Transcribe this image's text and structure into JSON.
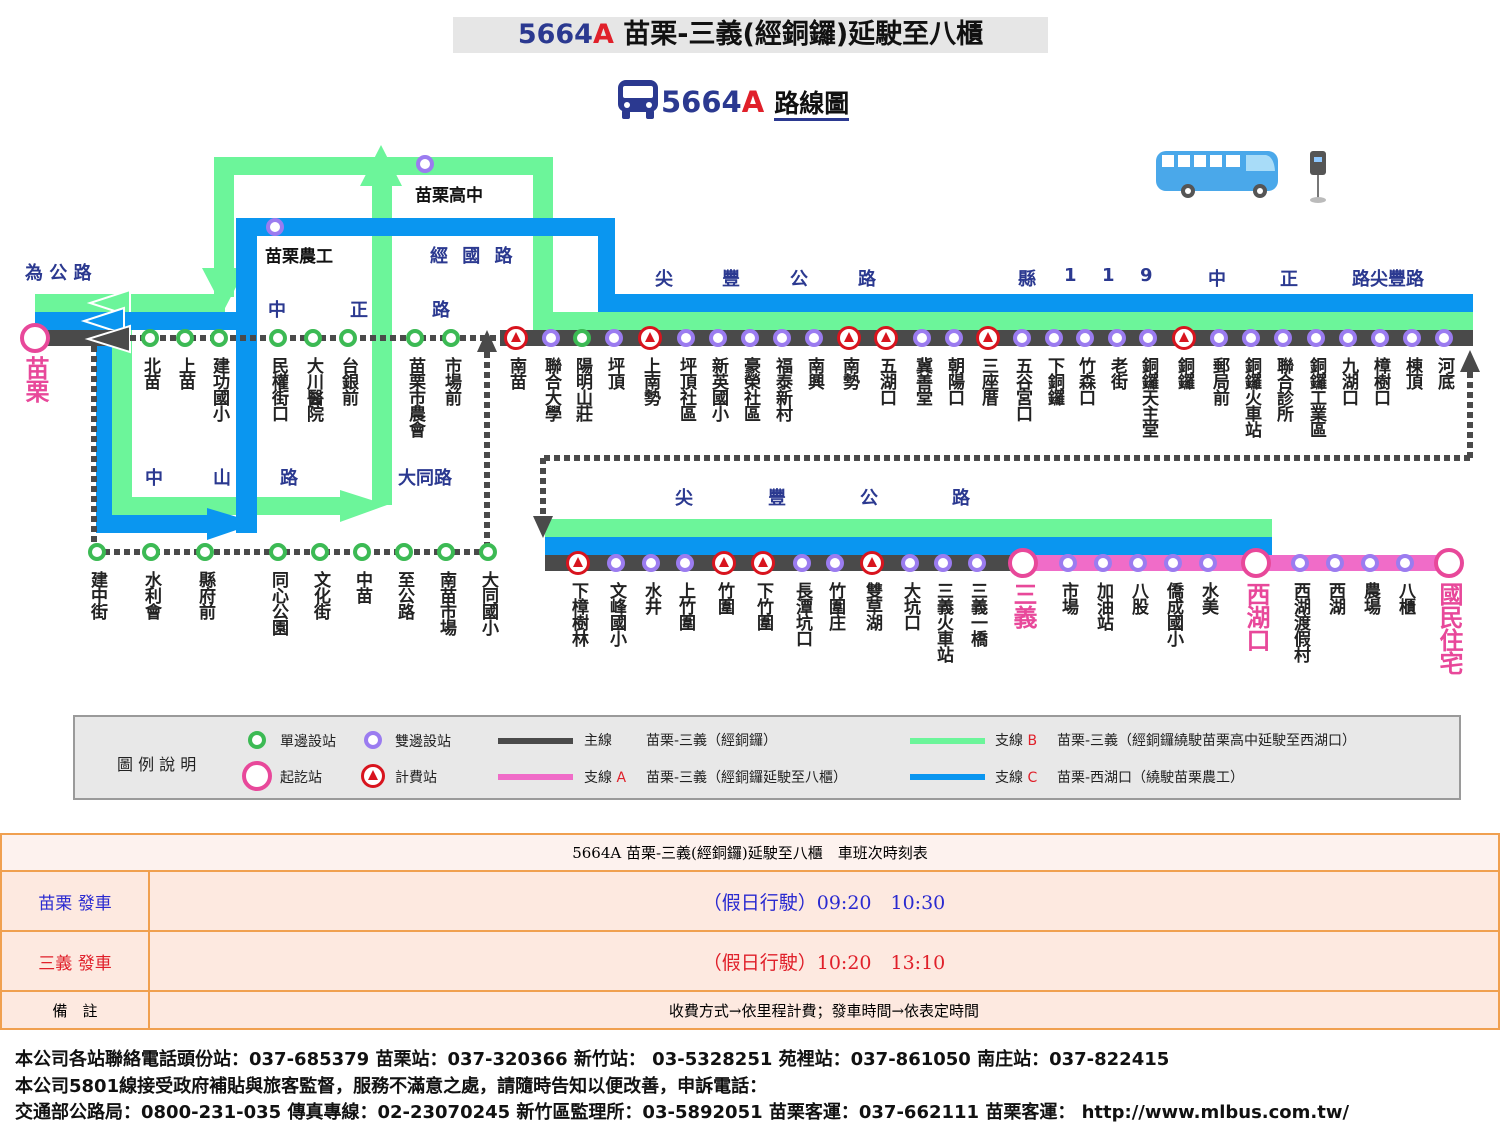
{
  "header": {
    "route_no": "5664",
    "route_suffix": "A",
    "title_rest": " 苗栗-三義(經銅鑼)延駛至八櫃"
  },
  "subtitle": {
    "route_no": "5664",
    "route_suffix": "A",
    "label": "路線圖"
  },
  "colors": {
    "main": "#4a4a4a",
    "branch_a": "#f06cc8",
    "branch_b": "#6cf59a",
    "branch_c": "#0a96f0",
    "navy": "#2b3990",
    "toll": "#d8141e"
  },
  "roads": {
    "weigong": "為 公 路",
    "jingguo": "經 國 路",
    "zhongzheng": [
      "中",
      "正",
      "路"
    ],
    "zhongshan": [
      "中",
      "山",
      "路"
    ],
    "datong": "大同路",
    "jianfeng_top": [
      "尖",
      "豐",
      "公",
      "路"
    ],
    "county119": [
      "縣",
      "1",
      "1",
      "9",
      "中",
      "正",
      "路尖豐路"
    ],
    "jianfeng_bottom": [
      "尖",
      "豐",
      "公",
      "路"
    ]
  },
  "off_stations": {
    "miaoli_high": "苗栗高中",
    "miaoli_agri": "苗栗農工"
  },
  "stations": {
    "origin": {
      "name": "苗栗",
      "type": "terminal"
    },
    "row1": [
      {
        "name": "北苗",
        "type": "single"
      },
      {
        "name": "上苗",
        "type": "single"
      },
      {
        "name": "建功國小",
        "type": "single"
      },
      {
        "name": "民權街口",
        "type": "single"
      },
      {
        "name": "大川醫院",
        "type": "single"
      },
      {
        "name": "台銀前",
        "type": "single"
      },
      {
        "name": "苗栗市農會",
        "type": "single"
      },
      {
        "name": "市場前",
        "type": "single"
      },
      {
        "name": "南苗",
        "type": "toll"
      },
      {
        "name": "聯合大學",
        "type": "double"
      },
      {
        "name": "陽明山莊",
        "type": "single"
      },
      {
        "name": "坪頂",
        "type": "double"
      },
      {
        "name": "上南勢",
        "type": "toll"
      },
      {
        "name": "坪頂社區",
        "type": "double"
      },
      {
        "name": "新英國小",
        "type": "double"
      },
      {
        "name": "豪榮社區",
        "type": "double"
      },
      {
        "name": "福泰新村",
        "type": "double"
      },
      {
        "name": "南興",
        "type": "double"
      },
      {
        "name": "南勢",
        "type": "toll"
      },
      {
        "name": "五湖口",
        "type": "toll"
      },
      {
        "name": "冀善堂",
        "type": "double"
      },
      {
        "name": "朝陽口",
        "type": "double"
      },
      {
        "name": "三座厝",
        "type": "toll"
      },
      {
        "name": "五谷宮口",
        "type": "double"
      },
      {
        "name": "下銅鑼",
        "type": "double"
      },
      {
        "name": "竹森口",
        "type": "double"
      },
      {
        "name": "老街",
        "type": "double"
      },
      {
        "name": "銅鑼天主堂",
        "type": "double"
      },
      {
        "name": "銅鑼",
        "type": "toll"
      },
      {
        "name": "郵局前",
        "type": "double"
      },
      {
        "name": "銅鑼火車站",
        "type": "double"
      },
      {
        "name": "聯合診所",
        "type": "double"
      },
      {
        "name": "銅鑼工業區",
        "type": "double"
      },
      {
        "name": "九湖口",
        "type": "double"
      },
      {
        "name": "樟樹口",
        "type": "double"
      },
      {
        "name": "棟頂",
        "type": "double"
      },
      {
        "name": "河底",
        "type": "double"
      }
    ],
    "loop": [
      {
        "name": "建中街",
        "type": "single"
      },
      {
        "name": "水利會",
        "type": "single"
      },
      {
        "name": "縣府前",
        "type": "single"
      },
      {
        "name": "同心公園",
        "type": "single"
      },
      {
        "name": "文化街",
        "type": "single"
      },
      {
        "name": "中苗",
        "type": "single"
      },
      {
        "name": "至公路",
        "type": "single"
      },
      {
        "name": "南苗市場",
        "type": "single"
      },
      {
        "name": "大同國小",
        "type": "single"
      }
    ],
    "row2": [
      {
        "name": "下樟樹林",
        "type": "toll"
      },
      {
        "name": "文峰國小",
        "type": "double"
      },
      {
        "name": "水井",
        "type": "double"
      },
      {
        "name": "上竹圍",
        "type": "double"
      },
      {
        "name": "竹圍",
        "type": "toll"
      },
      {
        "name": "下竹圍",
        "type": "toll"
      },
      {
        "name": "長潭坑口",
        "type": "double"
      },
      {
        "name": "竹圍庄",
        "type": "double"
      },
      {
        "name": "雙草湖",
        "type": "toll"
      },
      {
        "name": "大坑口",
        "type": "double"
      },
      {
        "name": "三義火車站",
        "type": "double"
      },
      {
        "name": "三義一橋",
        "type": "double"
      },
      {
        "name": "三義",
        "type": "terminal"
      },
      {
        "name": "市場",
        "type": "double"
      },
      {
        "name": "加油站",
        "type": "double"
      },
      {
        "name": "八股",
        "type": "double"
      },
      {
        "name": "僑成國小",
        "type": "double"
      },
      {
        "name": "水美",
        "type": "double"
      },
      {
        "name": "西湖口",
        "type": "terminal"
      },
      {
        "name": "西湖渡假村",
        "type": "double"
      },
      {
        "name": "西湖",
        "type": "double"
      },
      {
        "name": "農場",
        "type": "double"
      },
      {
        "name": "八櫃",
        "type": "double"
      },
      {
        "name": "國民住宅",
        "type": "terminal"
      }
    ]
  },
  "legend": {
    "title": "圖 例 說 明",
    "single": "單邊設站",
    "double": "雙邊設站",
    "terminal": "起訖站",
    "toll": "計費站",
    "main_label": "主線",
    "main_desc": "苗栗-三義（經銅鑼）",
    "a_label": "支線",
    "a_code": "A",
    "a_desc": "苗栗-三義（經銅鑼延駛至八櫃）",
    "b_label": "支線",
    "b_code": "B",
    "b_desc": "苗栗-三義（經銅鑼繞駛苗栗高中延駛至西湖口）",
    "c_label": "支線",
    "c_code": "C",
    "c_desc": "苗栗-西湖口（繞駛苗栗農工）"
  },
  "timetable": {
    "title": "5664A 苗栗-三義(經銅鑼)延駛至八櫃　車班次時刻表",
    "rows": [
      {
        "label": "苗栗 發車",
        "times": "（假日行駛）09:20　10:30",
        "color": "#2a2ad0"
      },
      {
        "label": "三義 發車",
        "times": "（假日行駛）10:20　13:10",
        "color": "#e0202a"
      }
    ],
    "note_label": "備　註",
    "note": "收費方式→依里程計費；發車時間→依表定時間"
  },
  "footer": [
    "本公司各站聯絡電話頭份站：037-685379 苗栗站：037-320366 新竹站： 03-5328251 苑裡站：037-861050 南庄站：037-822415",
    "本公司5801線接受政府補貼與旅客監督，服務不滿意之處，請隨時告知以便改善，申訴電話：",
    "交通部公路局：0800-231-035 傳真專線：02-23070245 新竹區監理所：03-5892051 苗栗客運：037-662111 苗栗客運： http://www.mlbus.com.tw/"
  ]
}
